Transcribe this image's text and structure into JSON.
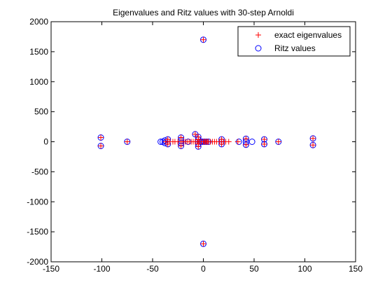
{
  "chart_data": {
    "type": "scatter",
    "title": "Eigenvalues and Ritz values with 30-step Arnoldi",
    "xlabel": "",
    "ylabel": "",
    "xlim": [
      -150,
      150
    ],
    "ylim": [
      -2000,
      2000
    ],
    "x_ticks": [
      -150,
      -100,
      -50,
      0,
      50,
      100,
      150
    ],
    "y_ticks": [
      -2000,
      -1500,
      -1000,
      -500,
      0,
      500,
      1000,
      1500,
      2000
    ],
    "x_tick_labels": [
      "-150",
      "-100",
      "-50",
      "0",
      "50",
      "100",
      "150"
    ],
    "y_tick_labels": [
      "-2000",
      "-1500",
      "-1000",
      "-500",
      "0",
      "500",
      "1000",
      "1500",
      "2000"
    ],
    "grid": false,
    "legend_position": "top-right",
    "series": [
      {
        "name": "exact eigenvalues",
        "marker": "plus",
        "color": "#ff0000",
        "points": [
          [
            0,
            1700
          ],
          [
            0,
            -1700
          ],
          [
            -101,
            70
          ],
          [
            -101,
            -70
          ],
          [
            -75,
            0
          ],
          [
            -37,
            0
          ],
          [
            -35,
            0
          ],
          [
            -33,
            0
          ],
          [
            -30,
            0
          ],
          [
            -28,
            0
          ],
          [
            -25,
            0
          ],
          [
            -22,
            0
          ],
          [
            -20,
            0
          ],
          [
            -18,
            0
          ],
          [
            -16,
            0
          ],
          [
            -14,
            0
          ],
          [
            -12,
            0
          ],
          [
            -10,
            0
          ],
          [
            -8,
            0
          ],
          [
            -6,
            0
          ],
          [
            -4,
            0
          ],
          [
            -2,
            0
          ],
          [
            -8,
            125
          ],
          [
            -22,
            70
          ],
          [
            -22,
            -70
          ],
          [
            -35,
            40
          ],
          [
            -35,
            -40
          ],
          [
            -5,
            80
          ],
          [
            -5,
            -80
          ],
          [
            -5,
            35
          ],
          [
            -5,
            -35
          ],
          [
            0,
            0
          ],
          [
            1,
            0
          ],
          [
            2,
            0
          ],
          [
            3,
            0
          ],
          [
            4,
            0
          ],
          [
            5,
            0
          ],
          [
            7,
            0
          ],
          [
            9,
            0
          ],
          [
            11,
            0
          ],
          [
            13,
            0
          ],
          [
            16,
            0
          ],
          [
            18,
            0
          ],
          [
            20,
            0
          ],
          [
            22,
            0
          ],
          [
            25,
            0
          ],
          [
            34,
            0
          ],
          [
            18,
            40
          ],
          [
            18,
            -40
          ],
          [
            42,
            50
          ],
          [
            42,
            -50
          ],
          [
            60,
            40
          ],
          [
            60,
            -40
          ],
          [
            74,
            0
          ],
          [
            108,
            55
          ],
          [
            108,
            -55
          ]
        ]
      },
      {
        "name": "Ritz values",
        "marker": "circle",
        "color": "#0000ff",
        "points": [
          [
            0,
            1700
          ],
          [
            0,
            -1700
          ],
          [
            -101,
            70
          ],
          [
            -101,
            -70
          ],
          [
            -75,
            0
          ],
          [
            -42,
            0
          ],
          [
            -40,
            0
          ],
          [
            -38,
            20
          ],
          [
            -38,
            -20
          ],
          [
            -35,
            40
          ],
          [
            -35,
            -40
          ],
          [
            -22,
            70
          ],
          [
            -22,
            -70
          ],
          [
            -22,
            20
          ],
          [
            -22,
            -20
          ],
          [
            -15,
            0
          ],
          [
            -8,
            125
          ],
          [
            -5,
            80
          ],
          [
            -5,
            -80
          ],
          [
            -5,
            35
          ],
          [
            -5,
            -35
          ],
          [
            -3,
            0
          ],
          [
            -1,
            0
          ],
          [
            1,
            0
          ],
          [
            3,
            0
          ],
          [
            5,
            0
          ],
          [
            18,
            40
          ],
          [
            18,
            -40
          ],
          [
            18,
            0
          ],
          [
            35,
            0
          ],
          [
            42,
            50
          ],
          [
            42,
            -50
          ],
          [
            42,
            0
          ],
          [
            48,
            0
          ],
          [
            60,
            40
          ],
          [
            60,
            -40
          ],
          [
            74,
            0
          ],
          [
            108,
            55
          ],
          [
            108,
            -55
          ]
        ]
      }
    ]
  }
}
